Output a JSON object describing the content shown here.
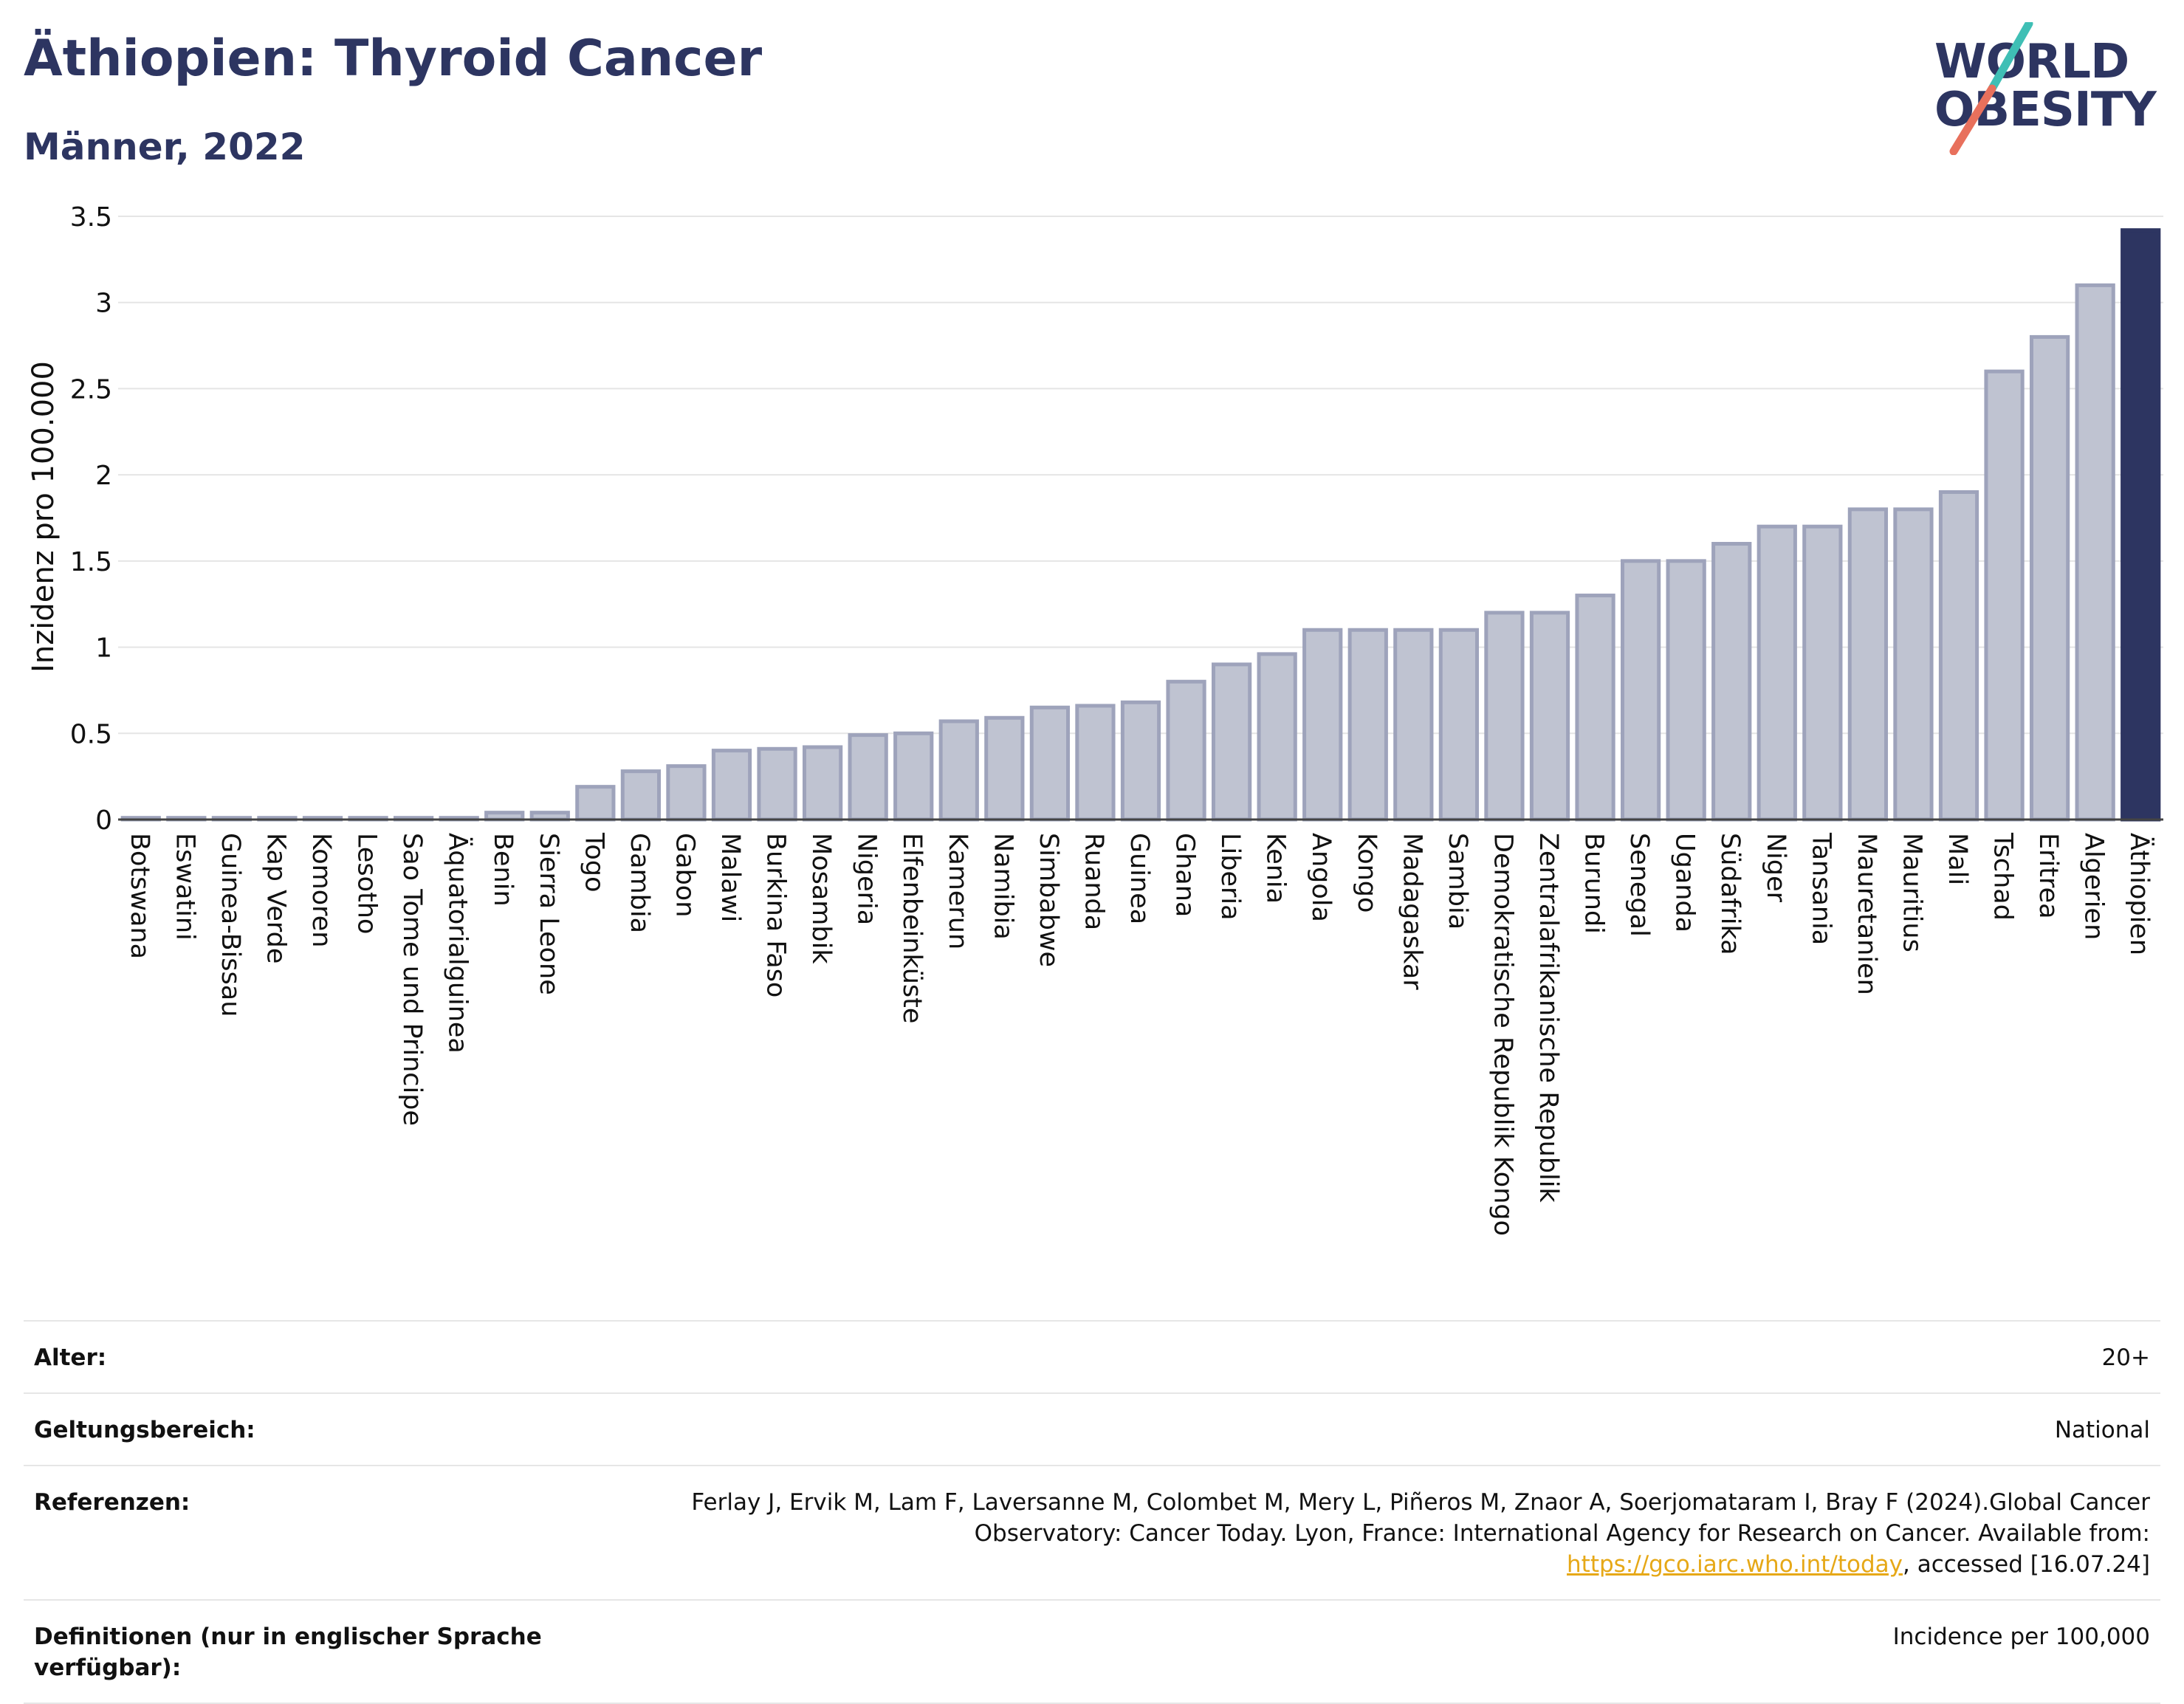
{
  "header": {
    "title": "Äthiopien: Thyroid Cancer",
    "subtitle": "Männer, 2022"
  },
  "logo": {
    "line1": "WORLD",
    "line2": "OBESITY",
    "colors": {
      "text": "#2d3561",
      "slash_top": "#3fbfb5",
      "slash_bottom": "#e8705c"
    }
  },
  "chart_data": {
    "type": "bar",
    "ylabel": "Inzidenz pro 100.000",
    "xlabel": "",
    "ylim": [
      0,
      3.5
    ],
    "yticks": [
      0,
      0.5,
      1,
      1.5,
      2,
      2.5,
      3,
      3.5
    ],
    "ytick_labels": [
      "0",
      "0.5",
      "1",
      "1.5",
      "2",
      "2.5",
      "3",
      "3.5"
    ],
    "grid": true,
    "highlight": "Äthiopien",
    "colors": {
      "bar": "#bfc3d1",
      "bar_stroke": "#9ea3bb",
      "highlight": "#2d3561",
      "grid": "#e5e5e5"
    },
    "categories": [
      "Botswana",
      "Eswatini",
      "Guinea-Bissau",
      "Kap Verde",
      "Komoren",
      "Lesotho",
      "Sao Tome und Principe",
      "Äquatorialguinea",
      "Benin",
      "Sierra Leone",
      "Togo",
      "Gambia",
      "Gabon",
      "Malawi",
      "Burkina Faso",
      "Mosambik",
      "Nigeria",
      "Elfenbeinküste",
      "Kamerun",
      "Namibia",
      "Simbabwe",
      "Ruanda",
      "Guinea",
      "Ghana",
      "Liberia",
      "Kenia",
      "Angola",
      "Kongo",
      "Madagaskar",
      "Sambia",
      "Demokratische Republik Kongo",
      "Zentralafrikanische Republik",
      "Burundi",
      "Senegal",
      "Uganda",
      "Südafrika",
      "Niger",
      "Tansania",
      "Mauretanien",
      "Mauritius",
      "Mali",
      "Tschad",
      "Eritrea",
      "Algerien",
      "Äthiopien"
    ],
    "values": [
      0.01,
      0.01,
      0.01,
      0.01,
      0.01,
      0.01,
      0.01,
      0.01,
      0.04,
      0.04,
      0.19,
      0.28,
      0.31,
      0.4,
      0.41,
      0.42,
      0.49,
      0.5,
      0.57,
      0.59,
      0.65,
      0.66,
      0.68,
      0.8,
      0.9,
      0.96,
      1.1,
      1.1,
      1.1,
      1.1,
      1.2,
      1.2,
      1.3,
      1.5,
      1.5,
      1.6,
      1.7,
      1.7,
      1.8,
      1.8,
      1.9,
      2.6,
      2.8,
      3.1,
      3.42
    ]
  },
  "meta": {
    "rows": [
      {
        "label": "Alter:",
        "value": "20+"
      },
      {
        "label": "Geltungsbereich:",
        "value": "National"
      },
      {
        "label": "Referenzen:",
        "value_part1": "Ferlay J, Ervik M, Lam F, Laversanne M, Colombet M, Mery L, Piñeros M, Znaor A, Soerjomataram I, Bray F (2024).Global Cancer Observatory: Cancer Today. Lyon, France: International Agency for Research on Cancer. Available from: ",
        "link": "https://gco.iarc.who.int/today",
        "value_part2": ", accessed [16.07.24]"
      },
      {
        "label": "Definitionen (nur in englischer Sprache verfügbar):",
        "value": "Incidence per 100,000"
      }
    ]
  }
}
